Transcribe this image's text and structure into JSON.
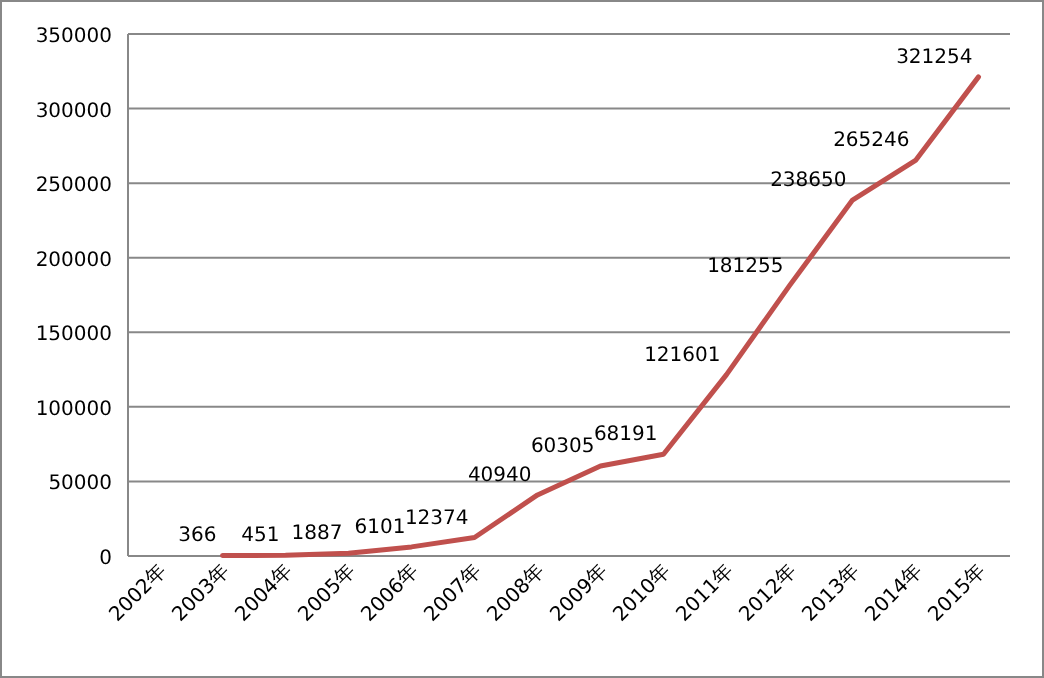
{
  "chart_data": {
    "type": "line",
    "categories": [
      "2002年",
      "2003年",
      "2004年",
      "2005年",
      "2006年",
      "2007年",
      "2008年",
      "2009年",
      "2010年",
      "2011年",
      "2012年",
      "2013年",
      "2014年",
      "2015年"
    ],
    "values": [
      null,
      366,
      451,
      1887,
      6101,
      12374,
      40940,
      60305,
      68191,
      121601,
      181255,
      238650,
      265246,
      321254
    ],
    "color": "#c0504d",
    "ylim": [
      0,
      350000
    ],
    "yticks": [
      0,
      50000,
      100000,
      150000,
      200000,
      250000,
      300000,
      350000
    ],
    "grid": "y",
    "data_labels": true,
    "marker": "none",
    "line_style": "solid"
  }
}
